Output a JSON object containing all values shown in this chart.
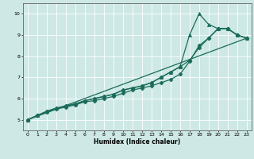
{
  "title": "",
  "xlabel": "Humidex (Indice chaleur)",
  "ylabel": "",
  "bg_color": "#cde8e5",
  "grid_color": "#ffffff",
  "line_color": "#1a6b5a",
  "xlim": [
    -0.5,
    23.5
  ],
  "ylim": [
    4.5,
    10.5
  ],
  "xticks": [
    0,
    1,
    2,
    3,
    4,
    5,
    6,
    7,
    8,
    9,
    10,
    11,
    12,
    13,
    14,
    15,
    16,
    17,
    18,
    19,
    20,
    21,
    22,
    23
  ],
  "yticks": [
    5,
    6,
    7,
    8,
    9,
    10
  ],
  "series": [
    {
      "x": [
        0,
        23
      ],
      "y": [
        5.0,
        8.85
      ],
      "marker": null,
      "markersize": 0,
      "linewidth": 0.9
    },
    {
      "x": [
        0,
        1,
        2,
        3,
        4,
        5,
        6,
        7,
        8,
        9,
        10,
        11,
        12,
        13,
        14,
        15,
        16,
        17,
        18,
        19,
        20,
        21,
        22,
        23
      ],
      "y": [
        5.0,
        5.2,
        5.4,
        5.55,
        5.65,
        5.75,
        5.9,
        6.0,
        6.1,
        6.2,
        6.4,
        6.5,
        6.6,
        6.75,
        7.0,
        7.25,
        7.5,
        7.8,
        8.4,
        8.85,
        9.3,
        9.3,
        9.0,
        8.85
      ],
      "marker": "D",
      "markersize": 2.5,
      "linewidth": 0.9
    },
    {
      "x": [
        0,
        1,
        2,
        3,
        4,
        5,
        6,
        7,
        8,
        9,
        10,
        11,
        12,
        13,
        14,
        15,
        16,
        17,
        18,
        19,
        20,
        21,
        22,
        23
      ],
      "y": [
        5.0,
        5.2,
        5.4,
        5.55,
        5.65,
        5.75,
        5.9,
        6.0,
        6.1,
        6.2,
        6.4,
        6.5,
        6.6,
        6.75,
        7.0,
        7.25,
        7.5,
        9.0,
        10.0,
        9.5,
        9.3,
        9.3,
        9.0,
        8.85
      ],
      "marker": "^",
      "markersize": 3,
      "linewidth": 0.9
    },
    {
      "x": [
        0,
        1,
        2,
        3,
        4,
        5,
        6,
        7,
        8,
        9,
        10,
        11,
        12,
        13,
        14,
        15,
        16,
        17,
        18,
        19,
        20,
        21,
        22,
        23
      ],
      "y": [
        5.0,
        5.2,
        5.35,
        5.5,
        5.6,
        5.7,
        5.85,
        5.9,
        6.0,
        6.1,
        6.25,
        6.4,
        6.5,
        6.6,
        6.75,
        6.9,
        7.15,
        7.75,
        8.5,
        8.85,
        9.3,
        9.3,
        9.0,
        8.85
      ],
      "marker": "D",
      "markersize": 2.5,
      "linewidth": 0.9
    }
  ]
}
